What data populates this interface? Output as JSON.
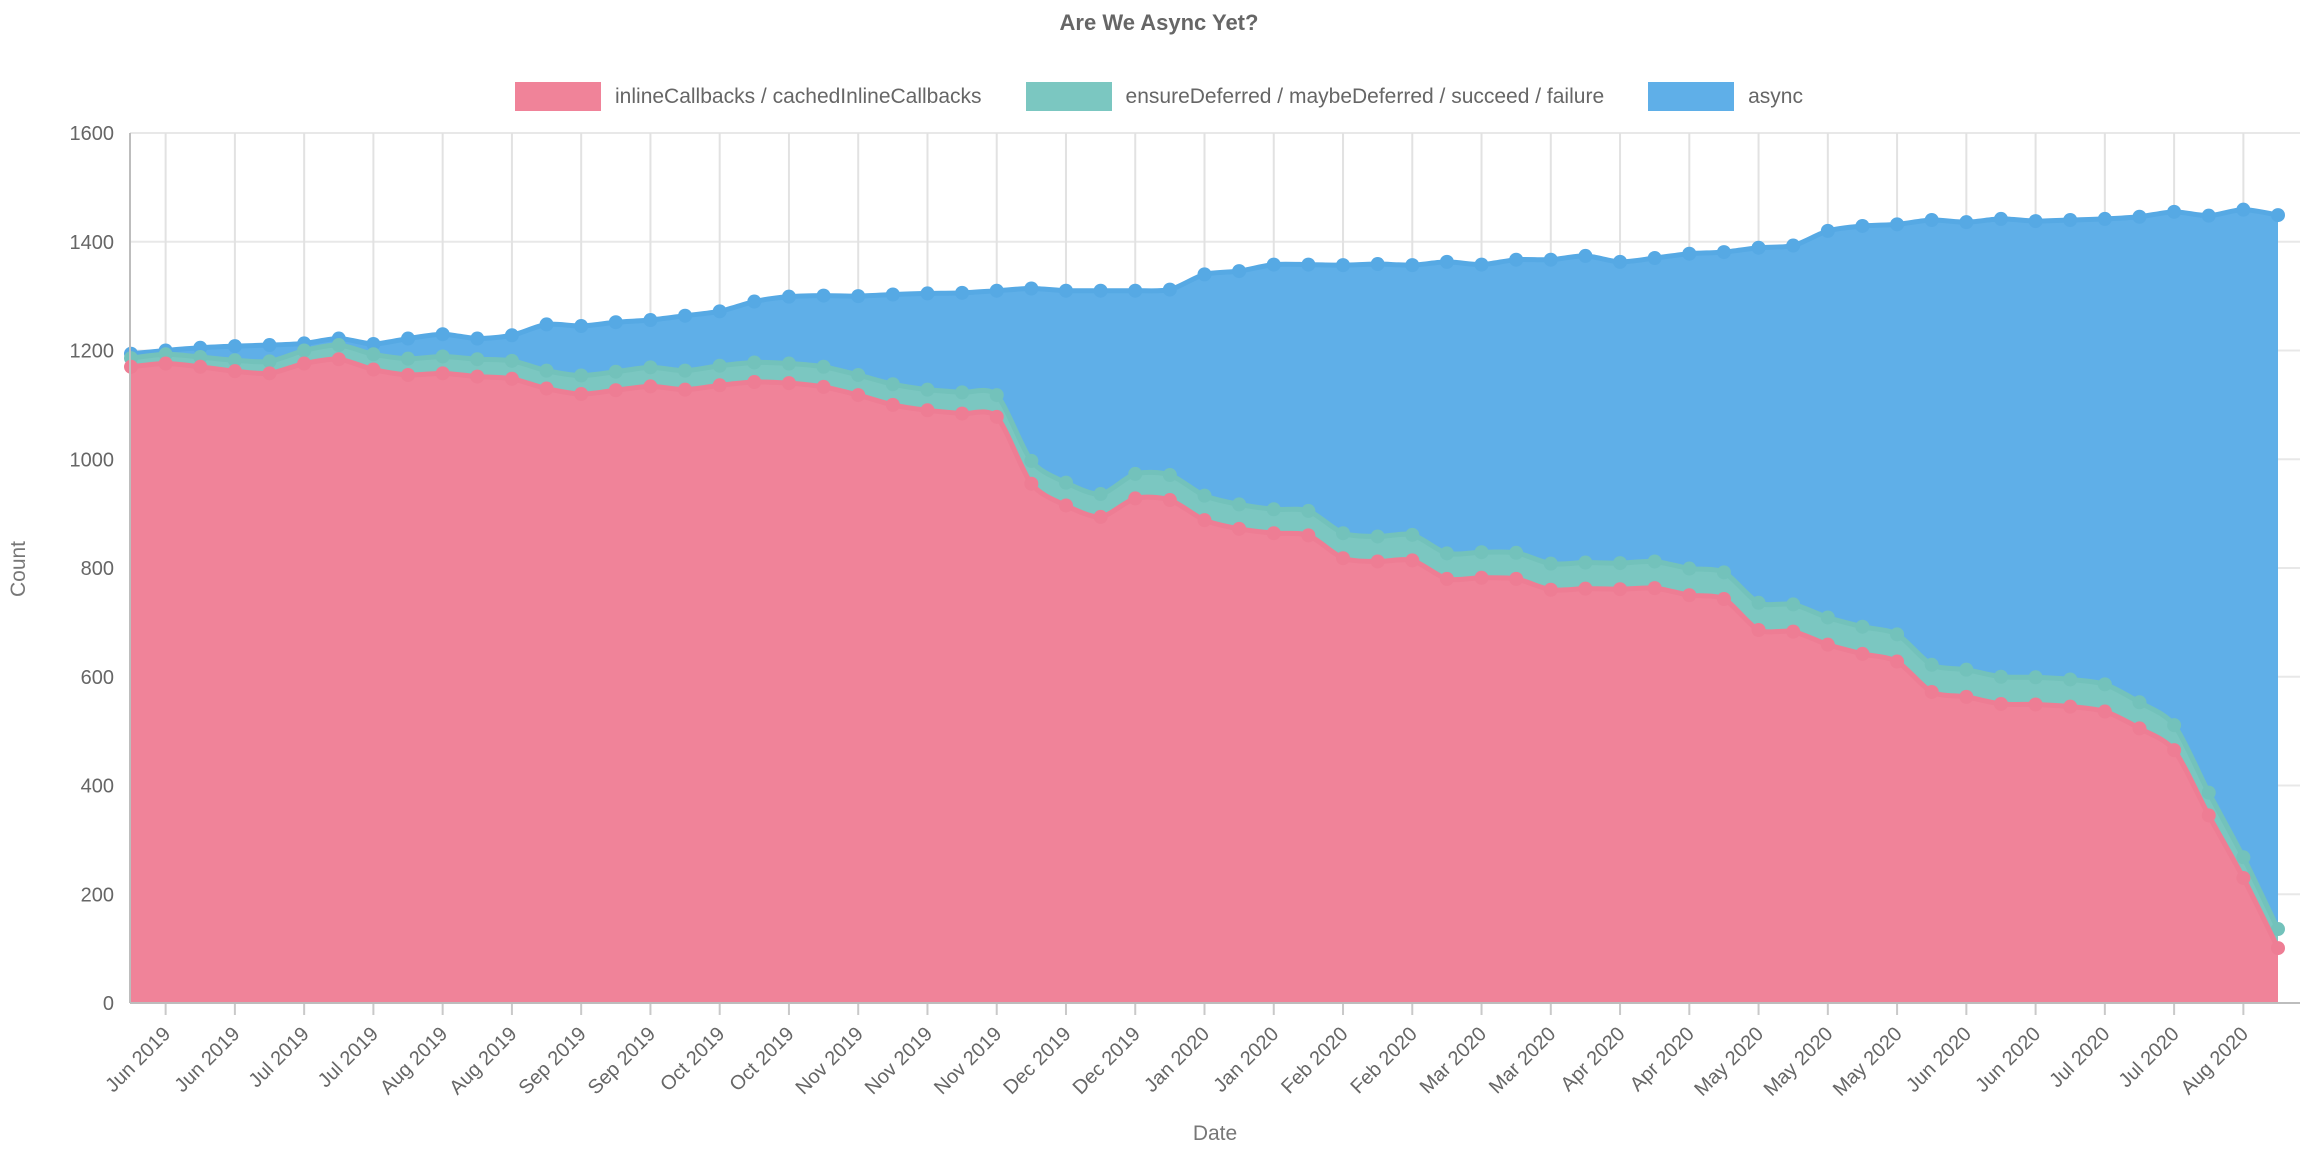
{
  "chart_data": {
    "type": "area",
    "stacked": true,
    "title": "Are We Async Yet?",
    "xlabel": "Date",
    "ylabel": "Count",
    "ylim": [
      0,
      1600
    ],
    "grid": true,
    "legend_position": "top",
    "y_ticks": [
      0,
      200,
      400,
      600,
      800,
      1000,
      1200,
      1400,
      1600
    ],
    "x_tick_labels": [
      "Jun 2019",
      "Jun 2019",
      "Jul 2019",
      "Jul 2019",
      "Aug 2019",
      "Aug 2019",
      "Sep 2019",
      "Sep 2019",
      "Oct 2019",
      "Oct 2019",
      "Nov 2019",
      "Nov 2019",
      "Nov 2019",
      "Dec 2019",
      "Dec 2019",
      "Jan 2020",
      "Jan 2020",
      "Feb 2020",
      "Feb 2020",
      "Mar 2020",
      "Mar 2020",
      "Apr 2020",
      "Apr 2020",
      "May 2020",
      "May 2020",
      "May 2020",
      "Jun 2020",
      "Jun 2020",
      "Jul 2020",
      "Jul 2020",
      "Aug 2020"
    ],
    "tick_first_point_index": 1,
    "tick_point_step": 2,
    "series": [
      {
        "name": "inlineCallbacks / cachedInlineCallbacks",
        "fill": "#f08399",
        "stroke": "#ee7d94",
        "values": [
          1170,
          1176,
          1170,
          1162,
          1158,
          1176,
          1184,
          1165,
          1155,
          1158,
          1152,
          1148,
          1130,
          1120,
          1127,
          1134,
          1128,
          1136,
          1142,
          1140,
          1133,
          1118,
          1100,
          1090,
          1084,
          1078,
          955,
          915,
          894,
          928,
          925,
          888,
          872,
          864,
          860,
          818,
          812,
          814,
          780,
          782,
          780,
          760,
          762,
          761,
          763,
          750,
          743,
          686,
          683,
          659,
          642,
          628,
          572,
          563,
          550,
          549,
          545,
          536,
          505,
          465,
          345,
          230,
          101
        ]
      },
      {
        "name": "ensureDeferred / maybeDeferred / succeed / failure",
        "fill": "#7bc7c1",
        "stroke": "#73c2bb",
        "values": [
          16,
          17,
          18,
          20,
          22,
          24,
          26,
          28,
          30,
          31,
          32,
          33,
          33,
          34,
          34,
          35,
          35,
          36,
          36,
          36,
          37,
          37,
          38,
          38,
          39,
          40,
          42,
          42,
          42,
          45,
          46,
          45,
          45,
          44,
          45,
          46,
          46,
          47,
          47,
          47,
          48,
          48,
          48,
          48,
          49,
          49,
          49,
          50,
          50,
          50,
          50,
          50,
          50,
          50,
          50,
          50,
          50,
          50,
          48,
          46,
          42,
          38,
          35
        ]
      },
      {
        "name": "async",
        "fill": "#5fafe8",
        "stroke": "#56a9e4",
        "values": [
          8,
          7,
          17,
          26,
          30,
          13,
          12,
          19,
          37,
          41,
          38,
          47,
          85,
          91,
          91,
          87,
          101,
          100,
          112,
          123,
          131,
          145,
          165,
          177,
          183,
          192,
          317,
          353,
          374,
          337,
          341,
          407,
          429,
          450,
          453,
          493,
          501,
          496,
          536,
          529,
          539,
          559,
          564,
          554,
          558,
          579,
          589,
          653,
          660,
          711,
          737,
          754,
          818,
          823,
          842,
          839,
          845,
          856,
          893,
          944,
          1061,
          1191,
          1313
        ]
      }
    ]
  },
  "colors": {
    "background": "#ffffff",
    "text": "#666666",
    "grid_h": "#e8e8e8",
    "grid_v": "#e2e2e2",
    "axis": "#bdbdbd",
    "tick_stub": "#c9c9c9"
  }
}
